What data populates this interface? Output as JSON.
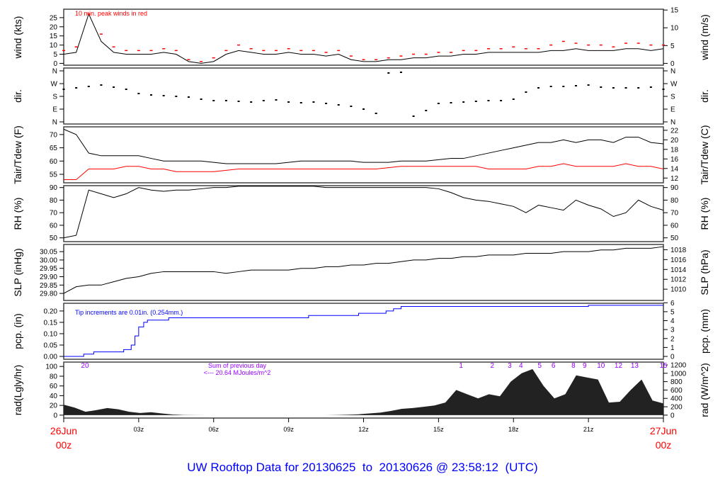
{
  "title": "UW Rooftop Data for 20130625  to  20130626 @ 23:58:12  (UTC)",
  "colors": {
    "main": "#000000",
    "peak": "#ff0000",
    "dew": "#ff0000",
    "precip": "#0000ff",
    "rad_labels": "#9900ff",
    "title": "#0000ff",
    "date_labels": "#ff0000"
  },
  "chart_data": [
    {
      "type": "line",
      "panel": "wind",
      "ylabel": "wind (kts)",
      "ylabel_right": "wind (m/s)",
      "ylim": [
        -1,
        29.6
      ],
      "yticks": [
        0,
        5,
        10,
        15,
        20,
        25
      ],
      "yticks_right": [
        0,
        5,
        10,
        15
      ],
      "right_factor": 1.9438,
      "annotation": "10 min. peak winds in red",
      "x_hours": "0 to 24 every 0.5",
      "series": [
        {
          "key": "wind",
          "values": [
            5,
            6,
            27,
            12,
            6,
            5,
            5,
            5,
            6,
            5,
            1,
            0,
            1,
            5,
            7,
            6,
            5,
            5,
            6,
            5,
            5,
            4,
            5,
            2,
            1,
            1,
            2,
            2,
            3,
            3,
            4,
            4,
            5,
            5,
            6,
            6,
            6,
            6,
            6,
            7,
            7,
            8,
            7,
            7,
            7,
            8,
            8,
            7,
            8
          ]
        },
        {
          "key": "peak",
          "values": [
            7,
            9,
            27,
            16,
            9,
            7,
            7,
            7,
            8,
            7,
            2,
            1,
            3,
            7,
            10,
            8,
            7,
            7,
            8,
            7,
            7,
            6,
            7,
            4,
            2,
            2,
            3,
            4,
            5,
            5,
            6,
            6,
            7,
            7,
            8,
            8,
            9,
            8,
            8,
            10,
            12,
            11,
            10,
            10,
            9,
            11,
            11,
            10,
            10
          ]
        }
      ]
    },
    {
      "type": "scatter",
      "panel": "dir",
      "ylabel": "dir.",
      "ylabel_right": "dir.",
      "ylim": [
        -15,
        380
      ],
      "yticks": [
        0,
        90,
        180,
        270,
        360
      ],
      "ytick_labels": [
        "N",
        "E",
        "S",
        "W",
        "N"
      ],
      "series": [
        {
          "key": "dir",
          "values": [
            230,
            240,
            250,
            260,
            245,
            230,
            200,
            190,
            185,
            180,
            175,
            160,
            150,
            150,
            145,
            140,
            150,
            155,
            140,
            135,
            140,
            130,
            120,
            110,
            90,
            60,
            345,
            350,
            40,
            80,
            130,
            135,
            140,
            145,
            150,
            150,
            160,
            210,
            240,
            250,
            250,
            255,
            260,
            245,
            240,
            240,
            240,
            245,
            230
          ]
        }
      ]
    },
    {
      "type": "line",
      "panel": "temp",
      "ylabel": "Tair/Tdew (F)",
      "ylabel_right": "Tair/Tdew (C)",
      "ylim": [
        51.8,
        72.9
      ],
      "yticks": [
        55,
        60,
        65,
        70
      ],
      "yticks_right": [
        12,
        14,
        16,
        18,
        20,
        22
      ],
      "series": [
        {
          "key": "tair",
          "values": [
            72,
            70,
            63,
            62,
            62,
            62,
            62,
            61,
            60,
            60,
            60,
            60,
            59.5,
            59,
            59,
            59,
            59,
            59,
            59.5,
            60,
            60,
            60,
            60,
            60,
            59.5,
            59.5,
            59.5,
            60,
            60,
            60,
            60.5,
            61,
            61,
            62,
            63,
            64,
            65,
            66,
            67,
            67,
            68,
            67,
            68,
            68,
            67,
            69,
            69,
            67,
            66.5
          ]
        },
        {
          "key": "tdew",
          "values": [
            53,
            53,
            57,
            57,
            57,
            58,
            58,
            57,
            57,
            56,
            56,
            56,
            56,
            56.5,
            57,
            57,
            57,
            57,
            57,
            57,
            57,
            57,
            57,
            57,
            57,
            57,
            57.5,
            58,
            58,
            58,
            58,
            58,
            58,
            58,
            57,
            57,
            57,
            57,
            58,
            58,
            59,
            58,
            58,
            58,
            58,
            59,
            58,
            58,
            57
          ]
        }
      ]
    },
    {
      "type": "line",
      "panel": "rh",
      "ylabel": "RH (%)",
      "ylabel_right": "RH (%)",
      "ylim": [
        47,
        91.5
      ],
      "yticks": [
        50,
        60,
        70,
        80,
        90
      ],
      "yticks_right": [
        50,
        60,
        70,
        80,
        90
      ],
      "series": [
        {
          "key": "rh",
          "values": [
            50,
            52,
            88,
            85,
            82,
            85,
            90,
            88,
            87,
            88,
            88,
            89,
            90,
            90,
            91,
            91,
            91,
            91,
            91,
            91,
            91,
            90,
            90,
            90,
            90,
            90,
            90,
            90,
            90,
            90,
            89,
            86,
            82,
            80,
            79,
            77,
            75,
            70,
            76,
            74,
            72,
            80,
            76,
            73,
            67,
            70,
            80,
            75,
            72
          ]
        }
      ]
    },
    {
      "type": "line",
      "panel": "slp",
      "ylabel": "SLP (inHg)",
      "ylabel_right": "SLP (hPa)",
      "ylim": [
        29.758,
        30.093
      ],
      "yticks": [
        29.8,
        29.85,
        29.9,
        29.95,
        30.0,
        30.05
      ],
      "yticks_right": [
        1010,
        1012,
        1014,
        1016,
        1018
      ],
      "series": [
        {
          "key": "slp",
          "values": [
            29.8,
            29.84,
            29.85,
            29.85,
            29.87,
            29.89,
            29.9,
            29.92,
            29.93,
            29.93,
            29.93,
            29.93,
            29.93,
            29.92,
            29.93,
            29.94,
            29.94,
            29.94,
            29.94,
            29.95,
            29.95,
            29.96,
            29.96,
            29.97,
            29.97,
            29.98,
            29.98,
            29.99,
            30.0,
            30.0,
            30.01,
            30.01,
            30.02,
            30.02,
            30.03,
            30.03,
            30.03,
            30.04,
            30.04,
            30.04,
            30.05,
            30.05,
            30.05,
            30.06,
            30.06,
            30.07,
            30.07,
            30.07,
            30.08
          ]
        }
      ]
    },
    {
      "type": "line",
      "panel": "pcp",
      "ylabel": "pcp. (in)",
      "ylabel_right": "pcp. (mm)",
      "ylim": [
        -0.0125,
        0.234
      ],
      "yticks": [
        0.0,
        0.05,
        0.1,
        0.15,
        0.2
      ],
      "yticks_right": [
        0,
        1,
        2,
        3,
        4,
        5,
        6
      ],
      "annotation": "Tip increments are 0.01in. (0.254mm.)",
      "steps": [
        [
          0,
          0
        ],
        [
          0.8,
          0.01
        ],
        [
          1.2,
          0.02
        ],
        [
          2.4,
          0.03
        ],
        [
          2.7,
          0.05
        ],
        [
          2.85,
          0.09
        ],
        [
          3.0,
          0.13
        ],
        [
          3.2,
          0.15
        ],
        [
          3.35,
          0.16
        ],
        [
          4.2,
          0.17
        ],
        [
          9.8,
          0.18
        ],
        [
          11.8,
          0.19
        ],
        [
          12.9,
          0.2
        ],
        [
          13.2,
          0.21
        ],
        [
          13.5,
          0.22
        ],
        [
          21.0,
          0.225
        ],
        [
          24,
          0.225
        ]
      ]
    },
    {
      "type": "area",
      "panel": "rad",
      "ylabel": "rad(Lgly/hr)",
      "ylabel_right": "rad (W/m^2)",
      "ylim": [
        -6,
        109
      ],
      "yticks": [
        0,
        20,
        40,
        60,
        80,
        100
      ],
      "yticks_right": [
        0,
        200,
        400,
        600,
        800,
        1000,
        1200
      ],
      "right_factor": 0.086,
      "annotation_lines": [
        "Sum of previous day",
        "<--- 20.64 MJoules/m^2"
      ],
      "hour_labels": [
        {
          "h": 0.85,
          "t": "20"
        },
        {
          "h": 15.9,
          "t": "1"
        },
        {
          "h": 17.15,
          "t": "2"
        },
        {
          "h": 17.85,
          "t": "3"
        },
        {
          "h": 18.3,
          "t": "4"
        },
        {
          "h": 19.05,
          "t": "5"
        },
        {
          "h": 19.6,
          "t": "6"
        },
        {
          "h": 20.4,
          "t": "8"
        },
        {
          "h": 20.85,
          "t": "9"
        },
        {
          "h": 21.5,
          "t": "10"
        },
        {
          "h": 22.2,
          "t": "12"
        },
        {
          "h": 22.85,
          "t": "13"
        },
        {
          "h": 24,
          "t": "15"
        }
      ],
      "series_wm2": [
        250,
        180,
        80,
        120,
        170,
        140,
        80,
        50,
        70,
        40,
        15,
        5,
        2,
        0,
        0,
        0,
        0,
        0,
        0,
        0,
        0,
        0,
        0,
        0,
        0,
        5,
        10,
        20,
        40,
        60,
        100,
        150,
        170,
        200,
        230,
        300,
        600,
        500,
        400,
        500,
        450,
        800,
        1000,
        1100,
        700,
        400,
        500,
        950,
        900,
        850,
        300,
        320,
        600,
        850,
        350,
        280
      ]
    }
  ],
  "xaxis": {
    "ticks": [
      "03z",
      "06z",
      "09z",
      "12z",
      "15z",
      "18z",
      "21z"
    ],
    "start": [
      "26Jun",
      "00z"
    ],
    "end": [
      "27Jun",
      "00z"
    ]
  }
}
